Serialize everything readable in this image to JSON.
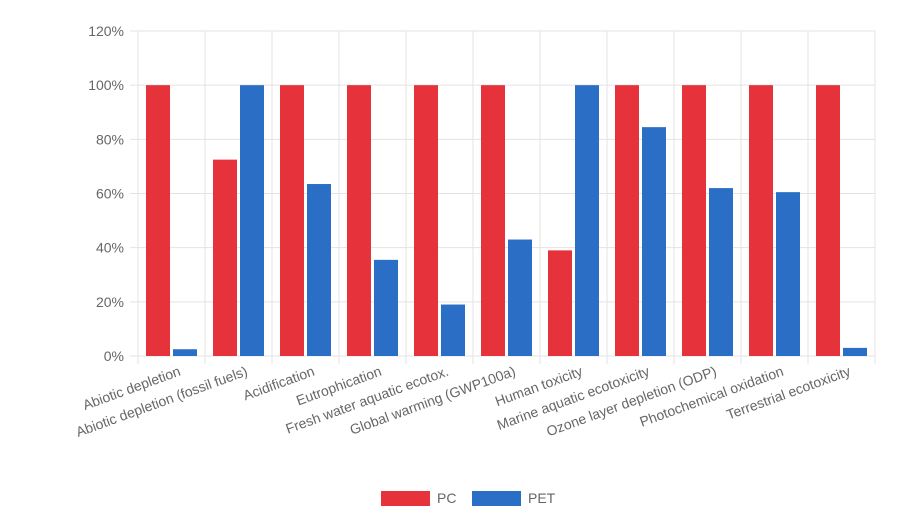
{
  "chart_data": {
    "type": "bar",
    "categories": [
      "Abiotic depletion",
      "Abiotic depletion (fossil fuels)",
      "Acidification",
      "Eutrophication",
      "Fresh water aquatic ecotox.",
      "Global warming (GWP100a)",
      "Human toxicity",
      "Marine aquatic ecotoxicity",
      "Ozone layer depletion (ODP)",
      "Photochemical oxidation",
      "Terrestrial ecotoxicity"
    ],
    "series": [
      {
        "name": "PC",
        "color": "#e5323b",
        "values": [
          100,
          72.5,
          100,
          100,
          100,
          100,
          39,
          100,
          100,
          100,
          100
        ]
      },
      {
        "name": "PET",
        "color": "#2a6fc5",
        "values": [
          2.5,
          100,
          63.5,
          35.5,
          19,
          43,
          100,
          84.5,
          62,
          60.5,
          3
        ]
      }
    ],
    "y_ticks": [
      "0%",
      "20%",
      "40%",
      "60%",
      "80%",
      "100%",
      "120%"
    ],
    "ylim": [
      0,
      120
    ],
    "grid": true,
    "legend_position": "bottom"
  }
}
